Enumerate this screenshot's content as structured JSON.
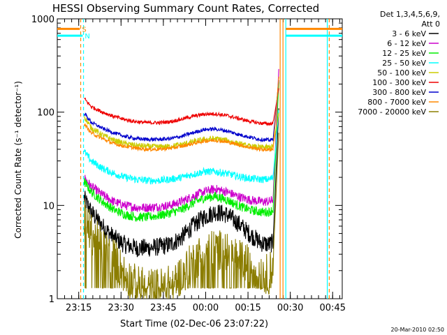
{
  "chart_data": {
    "type": "line",
    "title": "HESSI Observing Summary Count Rates, Corrected",
    "xlabel": "Start Time (02-Dec-06 23:07:22)",
    "ylabel": "Corrected Count Rate (s⁻¹ detector⁻¹)",
    "x_unit": "minutes since 23:07:22",
    "xlim": [
      0,
      101
    ],
    "ylim": [
      1,
      1000
    ],
    "y_scale": "log",
    "x_ticks": [
      {
        "v": 7.6,
        "label": "23:15"
      },
      {
        "v": 22.6,
        "label": "23:30"
      },
      {
        "v": 37.6,
        "label": "23:45"
      },
      {
        "v": 52.6,
        "label": "00:00"
      },
      {
        "v": 67.6,
        "label": "00:15"
      },
      {
        "v": 82.6,
        "label": "00:30"
      },
      {
        "v": 97.6,
        "label": "00:45"
      }
    ],
    "y_ticks": [
      {
        "v": 1,
        "label": "1"
      },
      {
        "v": 10,
        "label": "10"
      },
      {
        "v": 100,
        "label": "100"
      },
      {
        "v": 1000,
        "label": "1000"
      }
    ],
    "legend_header": [
      "Det 1,3,4,5,6,9,",
      "Att 0"
    ],
    "legend_position": "outside-right",
    "date_stamp": "20-Mar-2010 02:50",
    "x_shape": [
      9.5,
      12,
      16,
      20,
      24,
      28,
      32,
      36,
      40,
      44,
      48,
      52,
      56,
      60,
      64,
      68,
      72,
      75,
      76.5
    ],
    "series": [
      {
        "name": "3 - 6 keV",
        "color": "#000000",
        "noise": 0.1,
        "values": [
          12,
          8.5,
          6,
          4.5,
          3.8,
          3.5,
          3.5,
          3.6,
          3.8,
          4.5,
          6,
          7.5,
          8.5,
          8,
          6.5,
          5,
          4,
          3.8,
          4
        ]
      },
      {
        "name": "6 - 12 keV",
        "color": "#cc00cc",
        "noise": 0.05,
        "values": [
          20,
          16,
          13,
          11,
          10,
          9.5,
          9.5,
          9.7,
          10,
          11,
          12.5,
          14,
          15,
          14,
          12.5,
          11.5,
          11,
          11,
          11.5
        ]
      },
      {
        "name": "12 - 25 keV",
        "color": "#00ee00",
        "noise": 0.05,
        "values": [
          18,
          14,
          11,
          9,
          8,
          7.5,
          7.5,
          7.8,
          8.3,
          9,
          10.5,
          12,
          12.5,
          11.5,
          10,
          9,
          8.5,
          8.5,
          9
        ]
      },
      {
        "name": "25 - 50 keV",
        "color": "#00ffff",
        "noise": 0.04,
        "values": [
          38,
          30,
          25,
          22,
          20,
          19,
          18.5,
          18.5,
          19,
          20,
          21.5,
          23,
          23,
          22,
          20.5,
          19.5,
          19,
          19,
          20
        ]
      },
      {
        "name": "50 - 100 keV",
        "color": "#cccc00",
        "noise": 0.03,
        "values": [
          90,
          68,
          57,
          50,
          46,
          44,
          43,
          42.5,
          43,
          45,
          48,
          51,
          52,
          50,
          46,
          43,
          42,
          42,
          43
        ]
      },
      {
        "name": "100 - 300 keV",
        "color": "#ee0000",
        "noise": 0.02,
        "values": [
          140,
          115,
          100,
          90,
          83,
          79,
          77,
          77,
          79,
          84,
          90,
          95,
          96,
          92,
          86,
          80,
          76,
          75,
          76
        ]
      },
      {
        "name": "300 - 800 keV",
        "color": "#0000cc",
        "noise": 0.02,
        "values": [
          98,
          78,
          67,
          60,
          55,
          52,
          51,
          51,
          52,
          55,
          60,
          65,
          66,
          63,
          58,
          54,
          51,
          50,
          51
        ]
      },
      {
        "name": "800 - 7000 keV",
        "color": "#ff8800",
        "noise": 0.02,
        "values": [
          75,
          60,
          52,
          46,
          43,
          41,
          40,
          40,
          41,
          43,
          46,
          49,
          50,
          48,
          45,
          42,
          40,
          39.5,
          40
        ]
      },
      {
        "name": "7000 - 20000 keV",
        "color": "#8b7d00",
        "noise": 0.22,
        "values": [
          7.5,
          5,
          3.5,
          2.8,
          1.8,
          1.4,
          1.3,
          1.3,
          1.4,
          1.8,
          2.5,
          3.2,
          3.4,
          3.2,
          2.7,
          2.3,
          2.0,
          1.8,
          2.5
        ]
      }
    ],
    "flare_rise": {
      "x": [
        76.5,
        78.5
      ],
      "end_values": [
        110,
        290,
        210,
        105,
        98,
        180,
        220,
        240,
        60
      ]
    },
    "vlines": [
      {
        "x": 8.3,
        "color": "#ff8800",
        "style": "dashed"
      },
      {
        "x": 9.3,
        "color": "#00ffff",
        "style": "dashed"
      },
      {
        "x": 79.0,
        "color": "#ff8800",
        "style": "solid"
      },
      {
        "x": 80.0,
        "color": "#ff8800",
        "style": "solid"
      },
      {
        "x": 81.0,
        "color": "#00ffff",
        "style": "solid"
      },
      {
        "x": 95.7,
        "color": "#00ffff",
        "style": "solid"
      },
      {
        "x": 96.4,
        "color": "#ff8800",
        "style": "dashed"
      }
    ],
    "orbit_bars": [
      {
        "x_start": 0,
        "x_end": 8.0,
        "y": 780,
        "color": "#ff8800",
        "label": "S"
      },
      {
        "x_start": 0,
        "x_end": 9.0,
        "y": 660,
        "color": "#00ffff",
        "label": "N"
      },
      {
        "x_start": 81.0,
        "x_end": 101,
        "y": 780,
        "color": "#ff8800"
      },
      {
        "x_start": 81.0,
        "x_end": 101,
        "y": 660,
        "color": "#00ffff"
      }
    ]
  }
}
